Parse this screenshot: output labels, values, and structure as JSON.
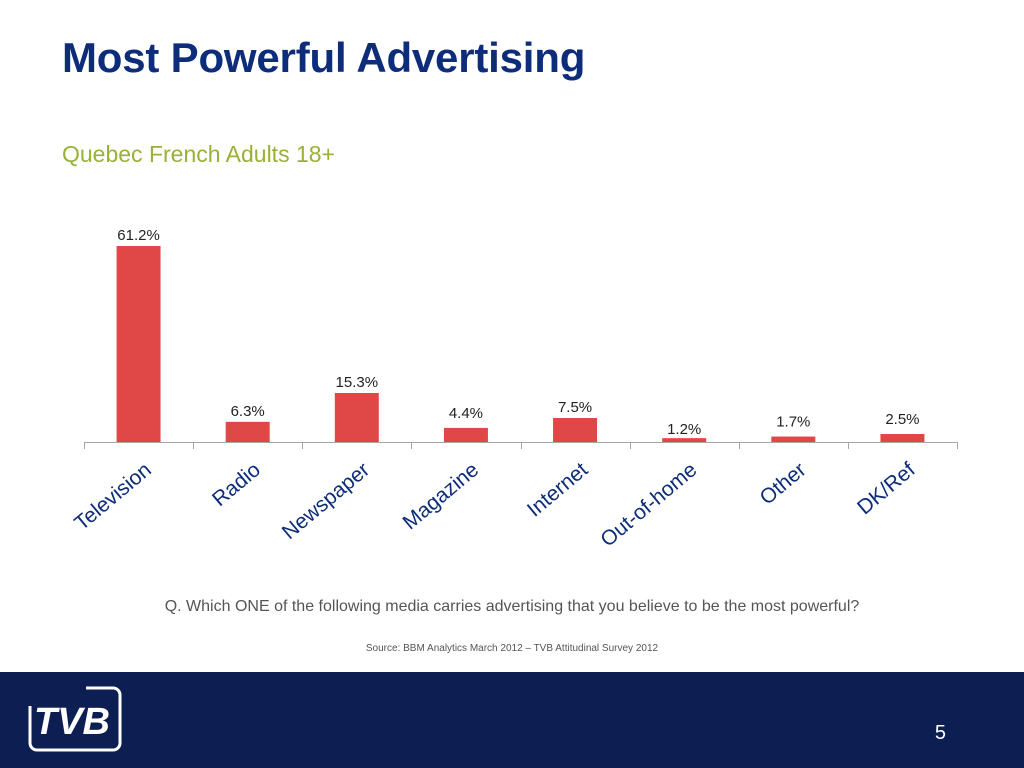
{
  "slide": {
    "title": "Most Powerful Advertising",
    "subtitle": "Quebec French Adults 18+",
    "question": "Q. Which ONE of the following media carries advertising that you believe to be the most powerful?",
    "source": "Source: BBM Analytics March 2012 – TVB Attitudinal Survey 2012",
    "page_number": "5",
    "logo_text": "TVB"
  },
  "colors": {
    "title": "#0d2d7a",
    "subtitle": "#97b234",
    "bar": "#e04848",
    "footer": "#0d1f52"
  },
  "chart_data": {
    "type": "bar",
    "categories": [
      "Television",
      "Radio",
      "Newspaper",
      "Magazine",
      "Internet",
      "Out-of-home",
      "Other",
      "DK/Ref"
    ],
    "values": [
      61.2,
      6.3,
      15.3,
      4.4,
      7.5,
      1.2,
      1.7,
      2.5
    ],
    "data_labels": [
      "61.2%",
      "6.3%",
      "15.3%",
      "4.4%",
      "7.5%",
      "1.2%",
      "1.7%",
      "2.5%"
    ],
    "title": "",
    "xlabel": "",
    "ylabel": "",
    "ylim": [
      0,
      61.2
    ],
    "grid": false,
    "legend": "none"
  }
}
